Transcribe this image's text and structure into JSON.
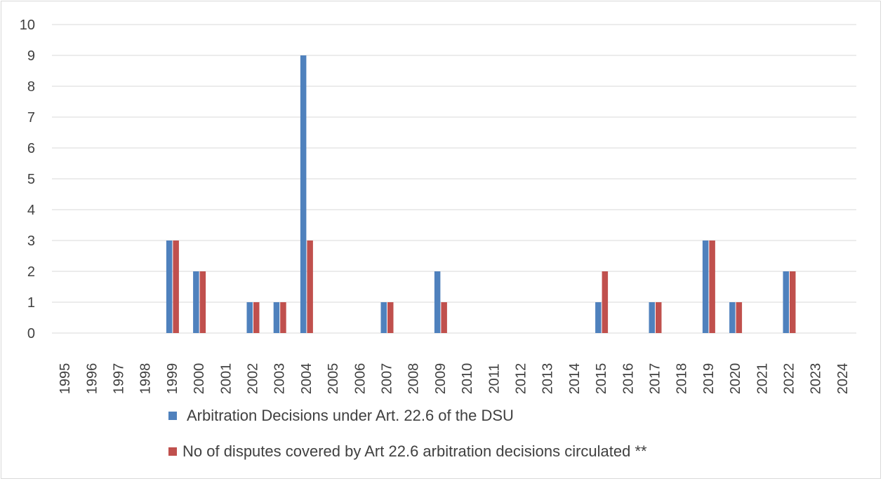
{
  "chart_data": {
    "type": "bar",
    "title": "",
    "xlabel": "",
    "ylabel": "",
    "ylim": [
      0,
      10
    ],
    "yticks": [
      0,
      1,
      2,
      3,
      4,
      5,
      6,
      7,
      8,
      9,
      10
    ],
    "grid": true,
    "legend_position": "bottom",
    "categories": [
      "1995",
      "1996",
      "1997",
      "1998",
      "1999",
      "2000",
      "2001",
      "2002",
      "2003",
      "2004",
      "2005",
      "2006",
      "2007",
      "2008",
      "2009",
      "2010",
      "2011",
      "2012",
      "2013",
      "2014",
      "2015",
      "2016",
      "2017",
      "2018",
      "2019",
      "2020",
      "2021",
      "2022",
      "2023",
      "2024"
    ],
    "series": [
      {
        "name": "Arbitration Decisions under Art. 22.6 of the DSU",
        "color": "#4f81bd",
        "values": [
          0,
          0,
          0,
          0,
          3,
          2,
          0,
          1,
          1,
          9,
          0,
          0,
          1,
          0,
          2,
          0,
          0,
          0,
          0,
          0,
          1,
          0,
          1,
          0,
          3,
          1,
          0,
          2,
          0,
          0
        ]
      },
      {
        "name": "No of disputes covered by Art 22.6 arbitration decisions circulated **",
        "color": "#c0504d",
        "values": [
          0,
          0,
          0,
          0,
          3,
          2,
          0,
          1,
          1,
          3,
          0,
          0,
          1,
          0,
          1,
          0,
          0,
          0,
          0,
          0,
          2,
          0,
          1,
          0,
          3,
          1,
          0,
          2,
          0,
          0
        ]
      }
    ]
  }
}
